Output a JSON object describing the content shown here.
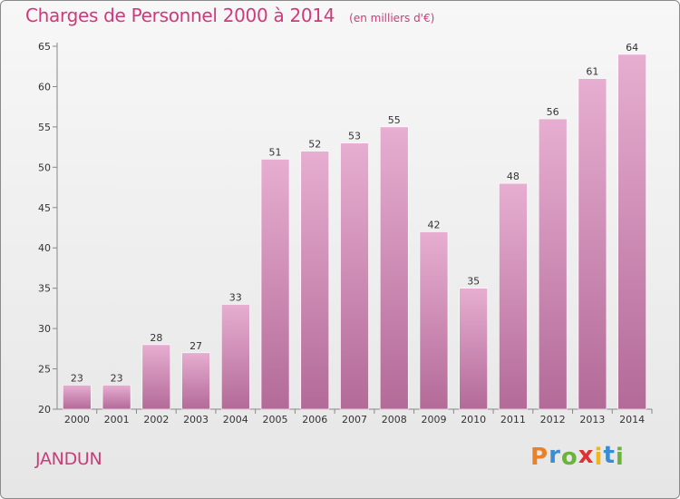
{
  "header": {
    "title": "Charges de Personnel 2000 à 2014",
    "subtitle": "(en milliers d'€)"
  },
  "footer": {
    "commune": "JANDUN",
    "logo": {
      "letters": [
        "P",
        "r",
        "o",
        "x",
        "i",
        "t",
        "i"
      ],
      "colors": [
        "#e8812a",
        "#3a8ed0",
        "#6ab43e",
        "#e0302f",
        "#f2b619",
        "#3a8ed0",
        "#6ab43e"
      ]
    }
  },
  "colors": {
    "bar_top": "#e7aed1",
    "bar_bottom": "#b36a98",
    "title": "#cc3b7a"
  },
  "chart_data": {
    "type": "bar",
    "categories": [
      "2000",
      "2001",
      "2002",
      "2003",
      "2004",
      "2005",
      "2006",
      "2007",
      "2008",
      "2009",
      "2010",
      "2011",
      "2012",
      "2013",
      "2014"
    ],
    "values": [
      23,
      23,
      28,
      27,
      33,
      51,
      52,
      53,
      55,
      42,
      35,
      48,
      56,
      61,
      64
    ],
    "ylim": [
      20,
      65
    ],
    "yticks": [
      20,
      25,
      30,
      35,
      40,
      45,
      50,
      55,
      60,
      65
    ],
    "grid": false,
    "data_labels": true
  }
}
